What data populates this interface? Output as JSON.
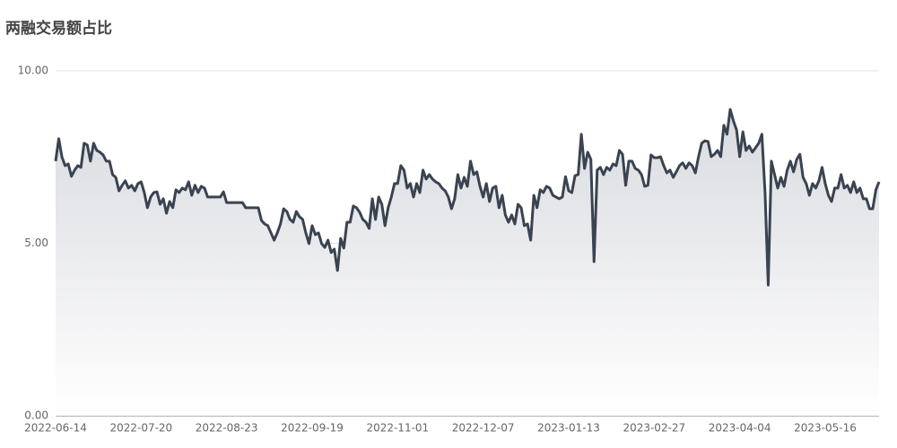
{
  "chart_data": {
    "type": "line",
    "title": "两融交易额占比",
    "categories": [
      "2022-06-14",
      null,
      null,
      null,
      null,
      null,
      null,
      null,
      null,
      null,
      null,
      null,
      null,
      null,
      null,
      null,
      null,
      null,
      null,
      null,
      null,
      null,
      null,
      null,
      null,
      null,
      null,
      "2022-07-20",
      null,
      null,
      null,
      null,
      null,
      null,
      null,
      null,
      null,
      null,
      null,
      null,
      null,
      null,
      null,
      null,
      null,
      null,
      null,
      null,
      null,
      null,
      null,
      null,
      null,
      null,
      "2022-08-23",
      null,
      null,
      null,
      null,
      null,
      null,
      null,
      null,
      null,
      null,
      null,
      null,
      null,
      null,
      null,
      null,
      null,
      null,
      null,
      null,
      null,
      null,
      null,
      null,
      null,
      null,
      "2022-09-19",
      null,
      null,
      null,
      null,
      null,
      null,
      null,
      null,
      null,
      null,
      null,
      null,
      null,
      null,
      null,
      null,
      null,
      null,
      null,
      null,
      null,
      null,
      null,
      null,
      null,
      null,
      "2022-11-01",
      null,
      null,
      null,
      null,
      null,
      null,
      null,
      null,
      null,
      null,
      null,
      null,
      null,
      null,
      null,
      null,
      null,
      null,
      null,
      null,
      null,
      null,
      null,
      null,
      null,
      null,
      "2022-12-07",
      null,
      null,
      null,
      null,
      null,
      null,
      null,
      null,
      null,
      null,
      null,
      null,
      null,
      null,
      null,
      null,
      null,
      null,
      null,
      null,
      null,
      null,
      null,
      null,
      null,
      null,
      "2023-01-13",
      null,
      null,
      null,
      null,
      null,
      null,
      null,
      null,
      null,
      null,
      null,
      null,
      null,
      null,
      null,
      null,
      null,
      null,
      null,
      null,
      null,
      null,
      null,
      null,
      null,
      null,
      "2023-02-27",
      null,
      null,
      null,
      null,
      null,
      null,
      null,
      null,
      null,
      null,
      null,
      null,
      null,
      null,
      null,
      null,
      null,
      null,
      null,
      null,
      null,
      null,
      null,
      null,
      null,
      null,
      "2023-04-04",
      null,
      null,
      null,
      null,
      null,
      null,
      null,
      null,
      null,
      null,
      null,
      null,
      null,
      null,
      null,
      null,
      null,
      null,
      null,
      null,
      null,
      null,
      null,
      null,
      null,
      null,
      "2023-05-16",
      null,
      null,
      null,
      null,
      null,
      null,
      null,
      null,
      null,
      null,
      null,
      null,
      null,
      null,
      null,
      null,
      null
    ],
    "values": [
      7.38,
      8.03,
      7.5,
      7.25,
      7.3,
      6.94,
      7.12,
      7.25,
      7.2,
      7.9,
      7.85,
      7.38,
      7.9,
      7.69,
      7.64,
      7.56,
      7.38,
      7.38,
      6.99,
      6.91,
      6.52,
      6.68,
      6.81,
      6.6,
      6.68,
      6.52,
      6.73,
      6.78,
      6.47,
      6.03,
      6.34,
      6.47,
      6.49,
      6.13,
      6.29,
      5.87,
      6.21,
      6.03,
      6.55,
      6.47,
      6.6,
      6.55,
      6.78,
      6.39,
      6.68,
      6.47,
      6.65,
      6.6,
      6.34,
      6.34,
      6.34,
      6.34,
      6.34,
      6.49,
      6.18,
      6.18,
      6.18,
      6.18,
      6.18,
      6.18,
      6.03,
      6.03,
      6.03,
      6.03,
      6.03,
      5.66,
      5.56,
      5.51,
      5.3,
      5.09,
      5.3,
      5.56,
      6.0,
      5.92,
      5.69,
      5.61,
      5.92,
      5.77,
      5.69,
      5.3,
      4.99,
      5.51,
      5.25,
      5.3,
      4.99,
      4.88,
      5.09,
      4.73,
      4.83,
      4.21,
      5.14,
      4.86,
      5.61,
      5.61,
      6.08,
      6.03,
      5.9,
      5.69,
      5.61,
      5.43,
      6.29,
      5.69,
      6.34,
      6.13,
      5.51,
      6.03,
      6.34,
      6.73,
      6.73,
      7.25,
      7.12,
      6.6,
      6.73,
      6.34,
      6.73,
      6.47,
      7.12,
      6.86,
      6.99,
      6.86,
      6.78,
      6.73,
      6.6,
      6.52,
      6.34,
      6.0,
      6.29,
      6.99,
      6.6,
      6.91,
      6.65,
      7.38,
      6.99,
      7.07,
      6.65,
      6.34,
      6.73,
      6.21,
      6.6,
      6.65,
      6.03,
      6.39,
      5.82,
      5.61,
      5.82,
      5.56,
      6.13,
      6.03,
      5.51,
      5.56,
      5.09,
      6.39,
      6.03,
      6.55,
      6.47,
      6.65,
      6.6,
      6.39,
      6.34,
      6.29,
      6.34,
      6.93,
      6.52,
      6.47,
      6.96,
      6.99,
      8.16,
      7.17,
      7.64,
      7.43,
      4.47,
      7.12,
      7.2,
      6.99,
      7.2,
      7.12,
      7.3,
      7.25,
      7.69,
      7.58,
      6.68,
      7.38,
      7.38,
      7.17,
      7.12,
      6.99,
      6.65,
      6.68,
      7.56,
      7.48,
      7.48,
      7.51,
      7.25,
      7.04,
      7.12,
      6.91,
      7.07,
      7.25,
      7.33,
      7.17,
      7.33,
      7.25,
      7.04,
      7.51,
      7.9,
      7.97,
      7.95,
      7.51,
      7.58,
      7.69,
      7.51,
      8.42,
      8.16,
      8.88,
      8.55,
      8.29,
      7.51,
      8.23,
      7.69,
      7.82,
      7.64,
      7.77,
      7.9,
      8.16,
      6.47,
      3.79,
      7.38,
      6.99,
      6.6,
      6.91,
      6.65,
      7.12,
      7.38,
      7.07,
      7.43,
      7.58,
      6.91,
      6.73,
      6.39,
      6.73,
      6.6,
      6.81,
      7.2,
      6.73,
      6.39,
      6.21,
      6.6,
      6.6,
      6.99,
      6.6,
      6.68,
      6.47,
      6.78,
      6.47,
      6.6,
      6.29,
      6.29,
      6.0,
      6.0,
      6.55,
      6.78
    ],
    "color": "#3a4350",
    "ylim": [
      0,
      10
    ],
    "yticks": [
      {
        "value": 0,
        "label": "0.00"
      },
      {
        "value": 5,
        "label": "5.00"
      },
      {
        "value": 10,
        "label": "10.00"
      }
    ],
    "grid": true
  }
}
